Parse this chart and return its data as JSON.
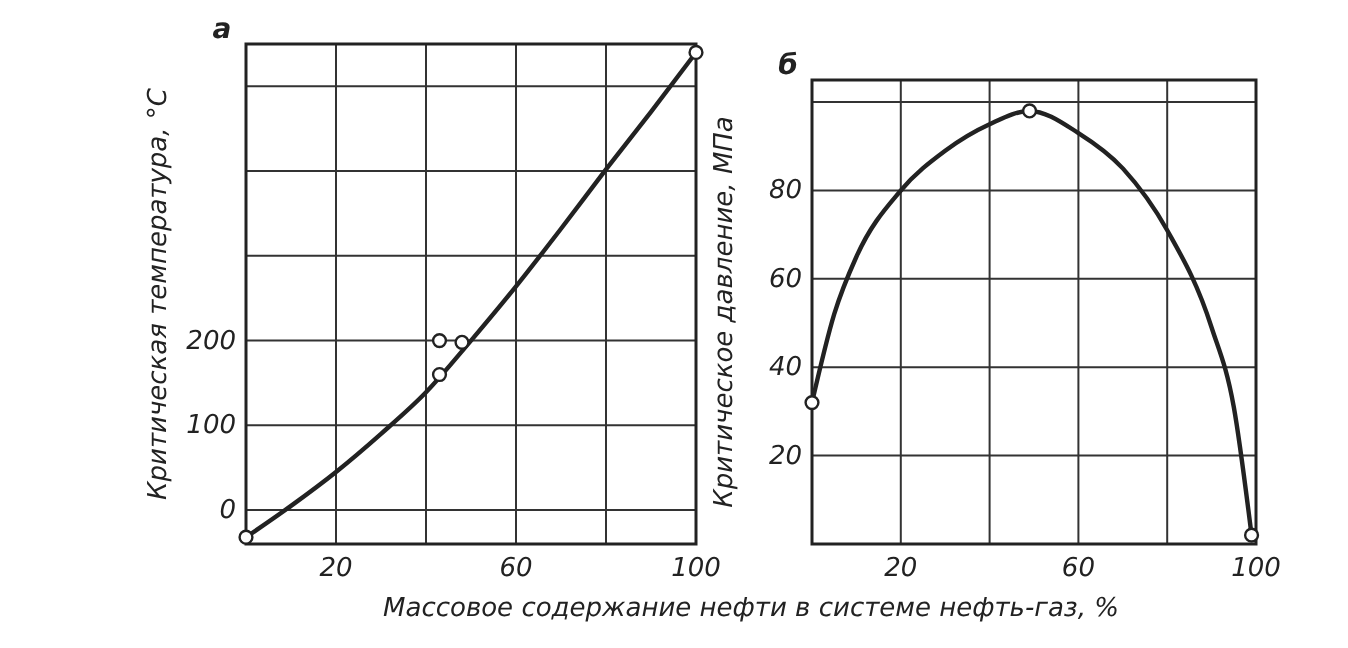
{
  "chart_data": [
    {
      "type": "line",
      "title": "а",
      "xlabel": "Массовое содержание нефти в системе нефть-газ, %",
      "ylabel": "Критическая температура, °С",
      "xlim": [
        0,
        100
      ],
      "ylim": [
        -40,
        550
      ],
      "xticks": [
        {
          "value": 0,
          "label": null
        },
        20,
        {
          "value": 40,
          "label": null
        },
        60,
        {
          "value": 80,
          "label": null
        },
        100
      ],
      "yticks": [
        0,
        100,
        200,
        {
          "value": 300,
          "label": null
        },
        {
          "value": 400,
          "label": null
        },
        {
          "value": 500,
          "label": null
        }
      ],
      "grid": true,
      "series": [
        {
          "color": "#222222",
          "marker": "none",
          "x": [
            0,
            10,
            20,
            30,
            40,
            50,
            60,
            70,
            80,
            90,
            100
          ],
          "values": [
            -32,
            5,
            45,
            90,
            139,
            200,
            264,
            332,
            402,
            470,
            540
          ]
        },
        {
          "type": "scatter",
          "color": "#222222",
          "marker": "circle",
          "x": [
            0,
            43,
            48,
            43,
            100
          ],
          "values": [
            -32,
            200,
            198,
            160,
            540
          ]
        }
      ]
    },
    {
      "type": "line",
      "title": "б",
      "ylabel": "Критическое давление, МПа",
      "xlim": [
        0,
        100
      ],
      "ylim": [
        0,
        105
      ],
      "xticks": [
        {
          "value": 0,
          "label": null
        },
        20,
        {
          "value": 40,
          "label": null
        },
        60,
        {
          "value": 80,
          "label": null
        },
        100
      ],
      "yticks": [
        {
          "value": 0,
          "label": null
        },
        20,
        40,
        60,
        80,
        {
          "value": 100,
          "label": null
        }
      ],
      "grid": true,
      "series": [
        {
          "color": "#222222",
          "marker": "none",
          "x": [
            0,
            5,
            10,
            20,
            30,
            40,
            49,
            60,
            70,
            80,
            90,
            95,
            99
          ],
          "values": [
            32,
            52,
            65,
            80,
            89,
            95,
            98,
            93,
            85,
            71,
            49,
            31,
            2
          ]
        },
        {
          "type": "scatter",
          "color": "#222222",
          "marker": "circle",
          "x": [
            0,
            49,
            99
          ],
          "values": [
            32,
            98,
            2
          ]
        }
      ]
    }
  ]
}
